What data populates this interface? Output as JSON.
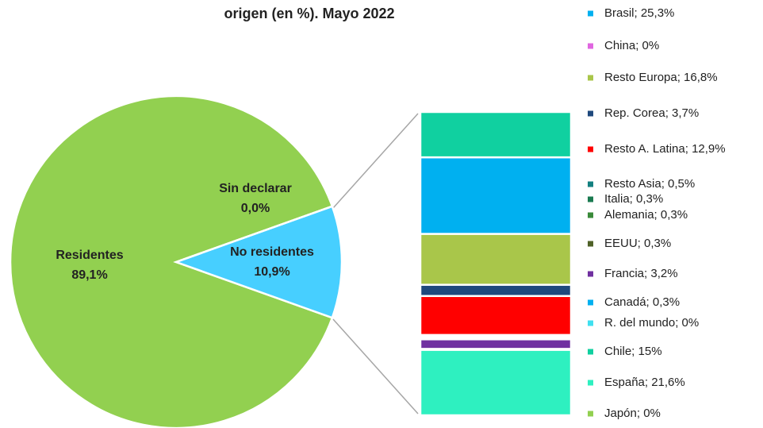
{
  "chart_data": {
    "type": "pie-of-bar",
    "title": "origen (en %). Mayo 2022",
    "pie": {
      "categories": [
        "Residentes",
        "No residentes",
        "Sin declarar"
      ],
      "values": [
        89.1,
        10.9,
        0.0
      ],
      "value_labels": [
        "89,1%",
        "10,9%",
        "0,0%"
      ],
      "colors": [
        "#92d050",
        "#47cfff",
        "#92d050"
      ]
    },
    "bar": {
      "series": [
        {
          "label": "Brasil; 25,3%",
          "value": 25.3,
          "color": "#00b0f0"
        },
        {
          "label": "China; 0%",
          "value": 0,
          "color": "#e066e0"
        },
        {
          "label": "Resto Europa; 16,8%",
          "value": 16.8,
          "color": "#a9c64a"
        },
        {
          "label": "Rep. Corea; 3,7%",
          "value": 3.7,
          "color": "#1f497d"
        },
        {
          "label": "Resto A. Latina; 12,9%",
          "value": 12.9,
          "color": "#ff0000"
        },
        {
          "label": "Resto Asia; 0,5%",
          "value": 0.5,
          "color": "#148080"
        },
        {
          "label": "Italia; 0,3%",
          "value": 0.3,
          "color": "#1a7a50"
        },
        {
          "label": "Alemania; 0,3%",
          "value": 0.3,
          "color": "#3a8a3a"
        },
        {
          "label": "EEUU; 0,3%",
          "value": 0.3,
          "color": "#4f6228"
        },
        {
          "label": "Francia; 3,2%",
          "value": 3.2,
          "color": "#7030a0"
        },
        {
          "label": "Canadá; 0,3%",
          "value": 0.3,
          "color": "#00b0f0"
        },
        {
          "label": "R. del mundo; 0%",
          "value": 0,
          "color": "#40e0f0"
        },
        {
          "label": "Chile; 15%",
          "value": 15,
          "color": "#10d0a0"
        },
        {
          "label": "España; 21,6%",
          "value": 21.6,
          "color": "#2ef0c0"
        },
        {
          "label": "Japón; 0%",
          "value": 0,
          "color": "#92d050"
        }
      ]
    }
  }
}
